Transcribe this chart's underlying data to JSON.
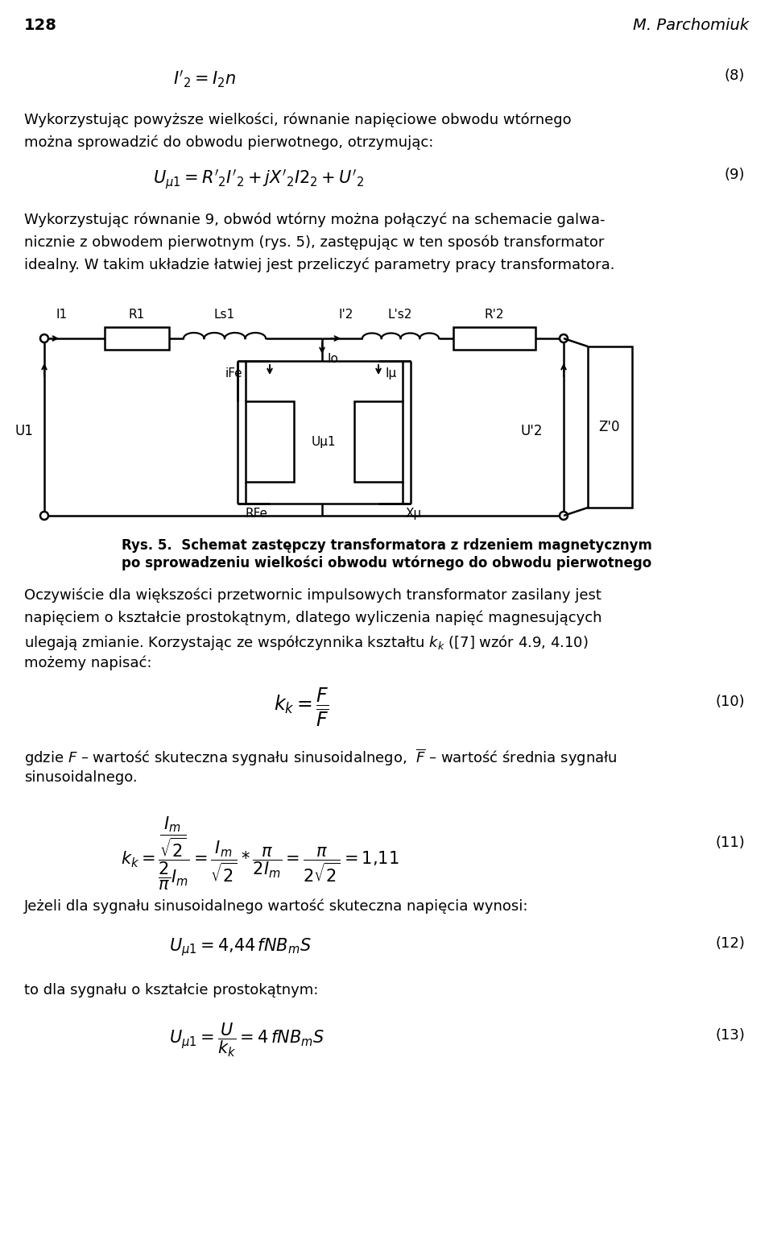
{
  "page_num": "128",
  "author": "M. Parchomiuk",
  "bg_color": "#ffffff",
  "text_color": "#000000",
  "para1_lines": [
    "Wykorzystując powyższe wielkości, równanie napięciowe obwodu wtórnego",
    "można sprowadzić do obwodu pierwotnego, otrzymując:"
  ],
  "para2_lines": [
    "Wykorzystując równanie 9, obwód wtórny można połączyć na schemacie galwa-",
    "nicznie z obwodem pierwotnym (rys. 5), zastępując w ten sposób transformator",
    "idealny. W takim układzie łatwiej jest przeliczyć parametry pracy transformatora."
  ],
  "caption_line1": "Rys. 5.  Schemat zastępczy transformatora z rdzeniem magnetycznym",
  "caption_line2": "po sprowadzeniu wielkości obwodu wtórnego do obwodu pierwotnego",
  "para3_lines": [
    "Oczywiście dla większości przetwornic impulsowych transformator zasilany jest",
    "napięciem o kształcie prostokątnym, dlatego wyliczenia napięć magnesujących",
    "ulegają zmianie. Korzystając ze współczynnika kształtu $k_k$ ([7] wzór 4.9, 4.10)",
    "możemy napisać:"
  ],
  "para4_line1": "gdzie $F$ – wartość skuteczna sygnału sinusoidalnego,  $\\overline{F}$ – wartość średnia sygnału",
  "para4_line2": "sinusoidalnego.",
  "para5": "Jeżeli dla sygnału sinusoidalnego wartość skuteczna napięcia wynosi:",
  "para6": "to dla sygnału o kształcie prostokątnym:"
}
